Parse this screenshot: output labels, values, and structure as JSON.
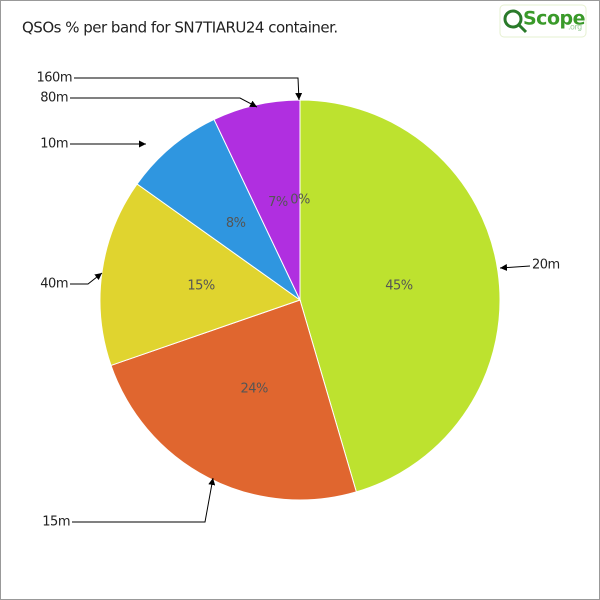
{
  "chart_data": {
    "type": "pie",
    "title": "QSOs % per band for SN7TIARU24 container.",
    "logo": {
      "name": "Scope",
      "suffix": ".org"
    },
    "categories": [
      "20m",
      "15m",
      "40m",
      "10m",
      "80m",
      "160m"
    ],
    "values": [
      45,
      24,
      15,
      8,
      7,
      0
    ],
    "value_labels": [
      "45%",
      "24%",
      "15%",
      "8%",
      "7%",
      "0%"
    ],
    "colors": [
      "#bde22f",
      "#e0662f",
      "#e0d42f",
      "#2f96e0",
      "#b02fe0",
      "#e02f6f"
    ]
  }
}
